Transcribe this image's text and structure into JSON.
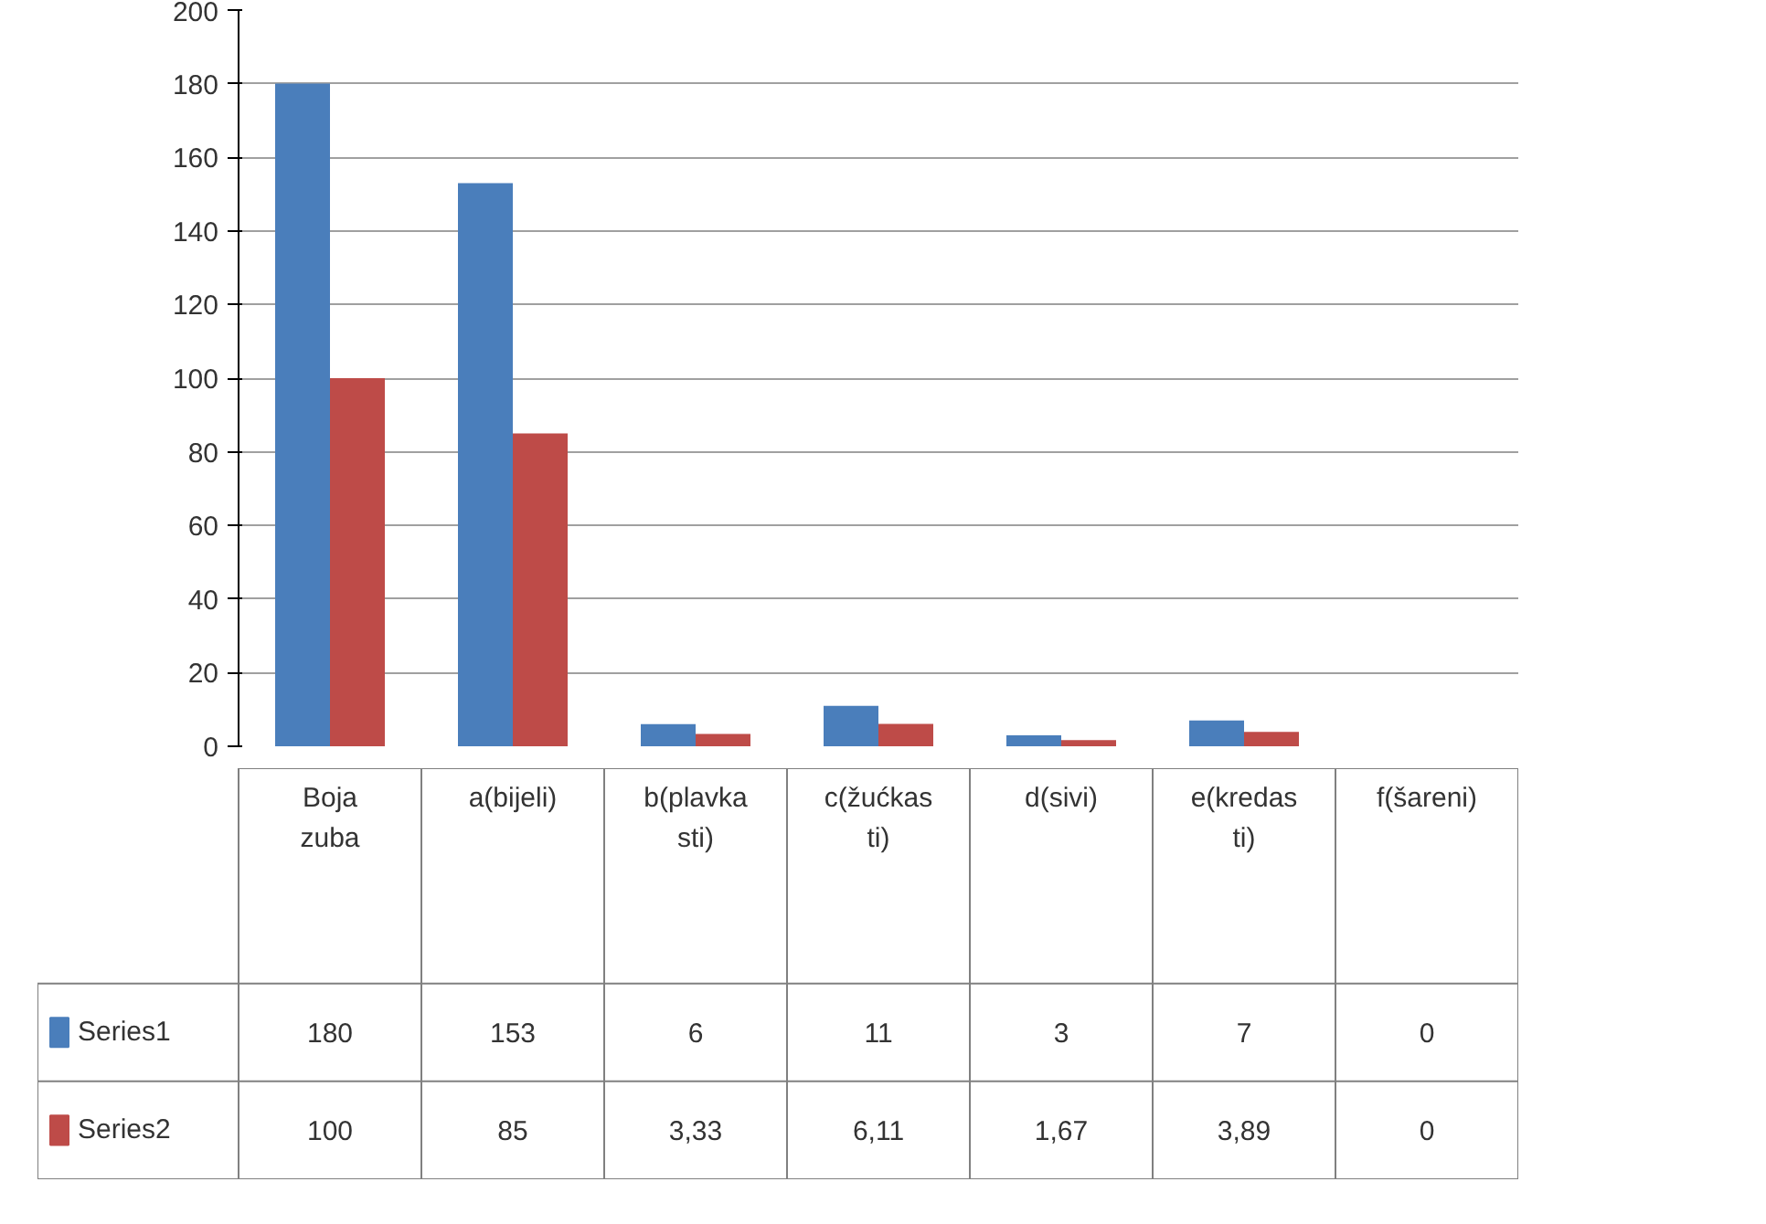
{
  "chart_data": {
    "type": "bar",
    "categories": [
      "Boja zuba",
      "a(bijeli)",
      "b(plavkasti)",
      "c(žućkasti)",
      "d(sivi)",
      "e(kredasti)",
      "f(šareni)"
    ],
    "series": [
      {
        "name": "Series1",
        "color": "#4a7ebb",
        "values": [
          180,
          153,
          6,
          11,
          3,
          7,
          0
        ],
        "value_labels": [
          "180",
          "153",
          "6",
          "11",
          "3",
          "7",
          "0"
        ]
      },
      {
        "name": "Series2",
        "color": "#be4b48",
        "values": [
          100,
          85,
          3.33,
          6.11,
          1.67,
          3.89,
          0
        ],
        "value_labels": [
          "100",
          "85",
          "3,33",
          "6,11",
          "1,67",
          "3,89",
          "0"
        ]
      }
    ],
    "ylim": [
      0,
      200
    ],
    "yticks": [
      0,
      20,
      40,
      60,
      80,
      100,
      120,
      140,
      160,
      180,
      200
    ],
    "grid": "y",
    "legend": "bottom"
  }
}
